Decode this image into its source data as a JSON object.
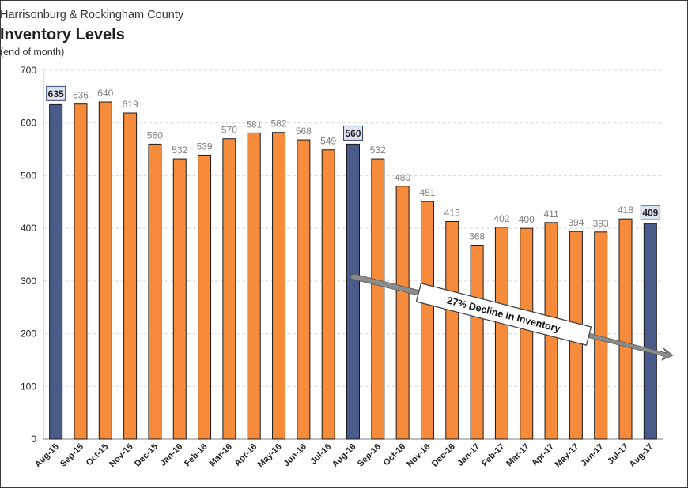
{
  "chart_data": {
    "type": "bar",
    "supertitle": "Harrisonburg & Rockingham County",
    "title": "Inventory Levels",
    "subtitle": "(end of month)",
    "xlabel": "",
    "ylabel": "",
    "ylim": [
      0,
      700
    ],
    "yticks": [
      "0",
      "100",
      "200",
      "300",
      "400",
      "500",
      "600",
      "700"
    ],
    "grid": true,
    "categories": [
      "Aug-15",
      "Sep-15",
      "Oct-15",
      "Nov-15",
      "Dec-15",
      "Jan-16",
      "Feb-16",
      "Mar-16",
      "Apr-16",
      "May-16",
      "Jun-16",
      "Jul-16",
      "Aug-16",
      "Sep-16",
      "Oct-16",
      "Nov-16",
      "Dec-16",
      "Jan-17",
      "Feb-17",
      "Mar-17",
      "Apr-17",
      "May-17",
      "Jun-17",
      "Jul-17",
      "Aug-17"
    ],
    "values": [
      635,
      636,
      640,
      619,
      560,
      532,
      539,
      570,
      581,
      582,
      568,
      549,
      560,
      532,
      480,
      451,
      413,
      368,
      402,
      400,
      411,
      394,
      393,
      418,
      409
    ],
    "highlighted": [
      "Aug-15",
      "Aug-16",
      "Aug-17"
    ],
    "colors": {
      "bar": "#f68b3c",
      "highlight": "#4a5a8a",
      "highlight_label_bg": "#dbe3f1"
    },
    "annotation": "27% Decline in Inventory"
  }
}
